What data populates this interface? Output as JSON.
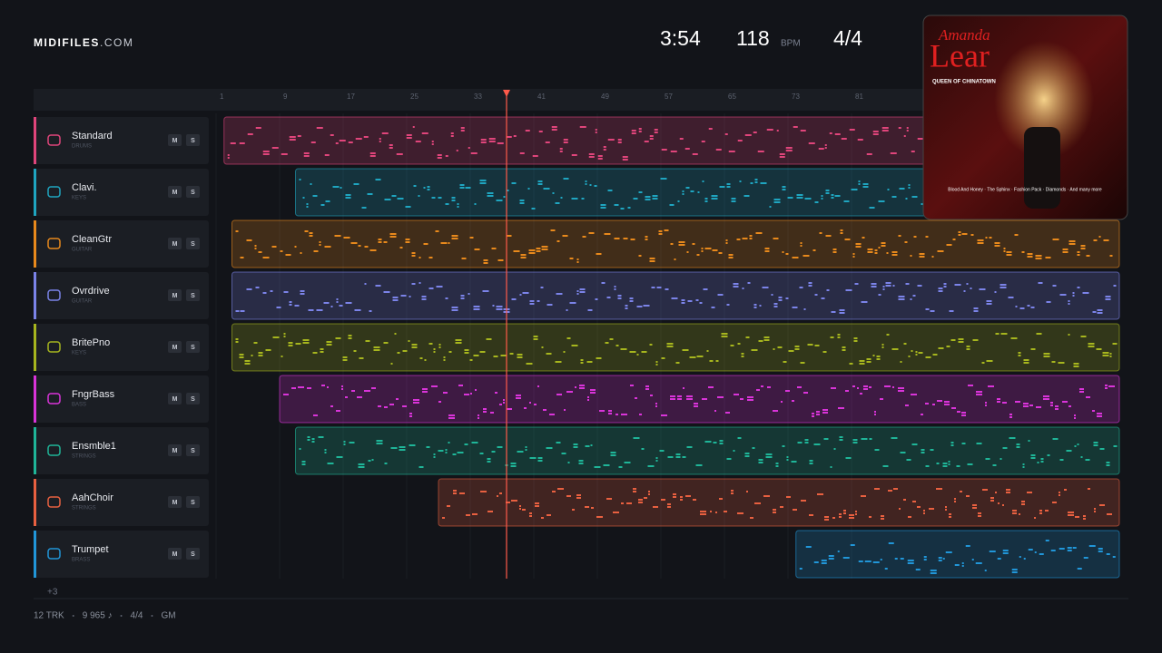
{
  "header": {
    "brand": "MIDIFILES",
    "brand_suffix": ".COM",
    "duration": "3:54",
    "tempo": "118",
    "tempo_unit": "BPM",
    "meter": "4/4"
  },
  "album": {
    "artist_first": "Amanda",
    "artist_last": "Lear",
    "title": "QUEEN OF CHINATOWN",
    "tracklist": "Blood And Honey · The Sphinx · Fashion Pack · Diamonds · And many more"
  },
  "ruler": [
    1,
    9,
    17,
    25,
    33,
    41,
    49,
    57,
    65,
    73,
    81
  ],
  "mute_label": "M",
  "solo_label": "S",
  "tracks": [
    {
      "name": "Standard",
      "category": "DRUMS",
      "color": "#e0457b"
    },
    {
      "name": "Clavi.",
      "category": "KEYS",
      "color": "#1fa5c0"
    },
    {
      "name": "CleanGtr",
      "category": "GUITAR",
      "color": "#e8891c"
    },
    {
      "name": "Ovrdrive",
      "category": "GUITAR",
      "color": "#7b83e8"
    },
    {
      "name": "BritePno",
      "category": "KEYS",
      "color": "#a6b51e"
    },
    {
      "name": "FngrBass",
      "category": "BASS",
      "color": "#d934d9"
    },
    {
      "name": "Ensmble1",
      "category": "STRINGS",
      "color": "#1fb598"
    },
    {
      "name": "AahChoir",
      "category": "STRINGS",
      "color": "#e86040"
    },
    {
      "name": "Trumpet",
      "category": "BRASS",
      "color": "#2196d8"
    }
  ],
  "more_tracks": "+3",
  "footer": [
    "12 TRK",
    "9 965 ♪",
    "4/4",
    "GM"
  ]
}
